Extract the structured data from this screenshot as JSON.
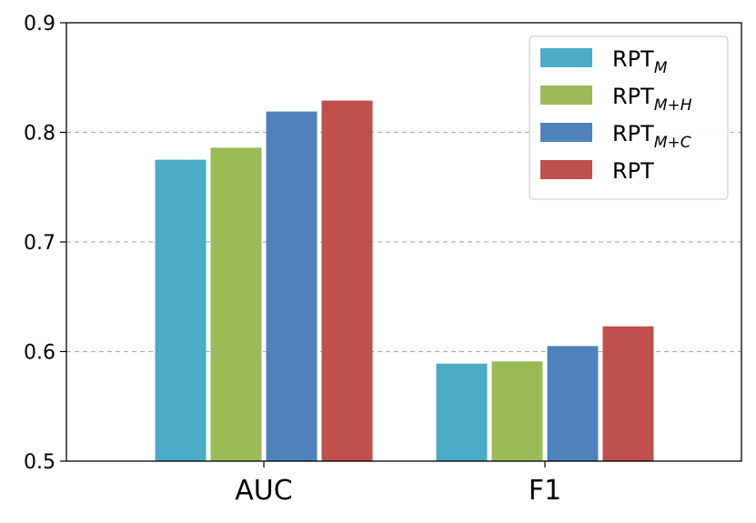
{
  "chart_data": {
    "type": "bar",
    "title": "",
    "xlabel": "",
    "ylabel": "",
    "categories": [
      "AUC",
      "F1"
    ],
    "ylim": [
      0.5,
      0.9
    ],
    "yticks": [
      "0.5",
      "0.6",
      "0.7",
      "0.8",
      "0.9"
    ],
    "ytick_values": [
      0.5,
      0.6,
      0.7,
      0.8,
      0.9
    ],
    "grid": "y dashed",
    "legend_position": "top-right",
    "series": [
      {
        "name": "RPT",
        "subscript": "M",
        "color": "#4bacc6",
        "values": [
          0.775,
          0.589
        ]
      },
      {
        "name": "RPT",
        "subscript": "M+H",
        "color": "#9bbb59",
        "values": [
          0.786,
          0.591
        ]
      },
      {
        "name": "RPT",
        "subscript": "M+C",
        "color": "#4f81bd",
        "values": [
          0.819,
          0.605
        ]
      },
      {
        "name": "RPT",
        "subscript": "",
        "color": "#c0504d",
        "values": [
          0.829,
          0.623
        ]
      }
    ]
  }
}
